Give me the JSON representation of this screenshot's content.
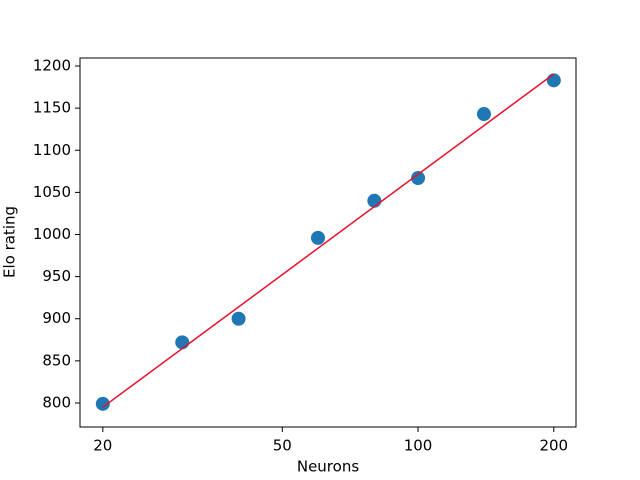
{
  "chart_data": {
    "type": "scatter",
    "xlabel": "Neurons",
    "ylabel": "Elo rating",
    "xscale": "log",
    "x": [
      20,
      30,
      40,
      60,
      80,
      100,
      140,
      200
    ],
    "values": [
      799,
      872,
      900,
      996,
      1040,
      1067,
      1143,
      1183
    ],
    "color": "#1f77b4",
    "fit": {
      "x": [
        20,
        200
      ],
      "values": [
        795,
        1190.5
      ],
      "color": "#e8102a"
    },
    "xlim": [
      17.8,
      224
    ],
    "xticks": [
      20,
      50,
      100,
      200
    ],
    "ylim": [
      771.5,
      1209.5
    ],
    "yticks": [
      800,
      850,
      900,
      950,
      1000,
      1050,
      1100,
      1150,
      1200
    ],
    "grid": false
  }
}
